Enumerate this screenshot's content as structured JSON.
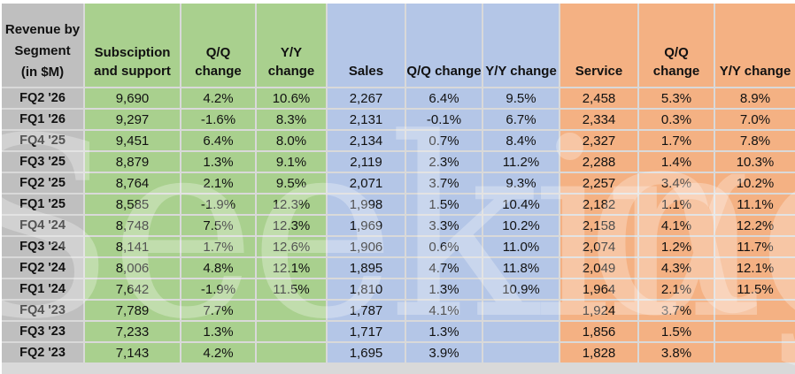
{
  "colors": {
    "green": "#A9D08E",
    "blue": "#B4C6E7",
    "orange": "#F4B183",
    "header_gray": "#BFBFBF",
    "gridline": "#D9D9D9"
  },
  "watermark": {
    "text": "SeekingAlpha",
    "alpha_glyph": "α"
  },
  "chart_data": {
    "type": "table",
    "title": "Revenue by Segment (in $M)",
    "row_header_title_lines": [
      "Revenue by",
      "Segment",
      "(in $M)"
    ],
    "headers": [
      "Subsciption and support",
      "Q/Q change",
      "Y/Y change",
      "Sales",
      "Q/Q change",
      "Y/Y change",
      "Service",
      "Q/Q change",
      "Y/Y change"
    ],
    "sections": [
      "green",
      "green",
      "green",
      "blue",
      "blue",
      "blue",
      "orange",
      "orange",
      "orange"
    ],
    "rows": [
      {
        "period": "FQ2 '26",
        "values": [
          "9,690",
          "4.2%",
          "10.6%",
          "2,267",
          "6.4%",
          "9.5%",
          "2,458",
          "5.3%",
          "8.9%"
        ]
      },
      {
        "period": "FQ1 '26",
        "values": [
          "9,297",
          "-1.6%",
          "8.3%",
          "2,131",
          "-0.1%",
          "6.7%",
          "2,334",
          "0.3%",
          "7.0%"
        ]
      },
      {
        "period": "FQ4 '25",
        "values": [
          "9,451",
          "6.4%",
          "8.0%",
          "2,134",
          "0.7%",
          "8.4%",
          "2,327",
          "1.7%",
          "7.8%"
        ]
      },
      {
        "period": "FQ3 '25",
        "values": [
          "8,879",
          "1.3%",
          "9.1%",
          "2,119",
          "2.3%",
          "11.2%",
          "2,288",
          "1.4%",
          "10.3%"
        ]
      },
      {
        "period": "FQ2 '25",
        "values": [
          "8,764",
          "2.1%",
          "9.5%",
          "2,071",
          "3.7%",
          "9.3%",
          "2,257",
          "3.4%",
          "10.2%"
        ]
      },
      {
        "period": "FQ1 '25",
        "values": [
          "8,585",
          "-1.9%",
          "12.3%",
          "1,998",
          "1.5%",
          "10.4%",
          "2,182",
          "1.1%",
          "11.1%"
        ]
      },
      {
        "period": "FQ4 '24",
        "values": [
          "8,748",
          "7.5%",
          "12.3%",
          "1,969",
          "3.3%",
          "10.2%",
          "2,158",
          "4.1%",
          "12.2%"
        ]
      },
      {
        "period": "FQ3 '24",
        "values": [
          "8,141",
          "1.7%",
          "12.6%",
          "1,906",
          "0.6%",
          "11.0%",
          "2,074",
          "1.2%",
          "11.7%"
        ]
      },
      {
        "period": "FQ2 '24",
        "values": [
          "8,006",
          "4.8%",
          "12.1%",
          "1,895",
          "4.7%",
          "11.8%",
          "2,049",
          "4.3%",
          "12.1%"
        ]
      },
      {
        "period": "FQ1 '24",
        "values": [
          "7,642",
          "-1.9%",
          "11.5%",
          "1,810",
          "1.3%",
          "10.9%",
          "1,964",
          "2.1%",
          "11.5%"
        ]
      },
      {
        "period": "FQ4 '23",
        "values": [
          "7,789",
          "7.7%",
          "",
          "1,787",
          "4.1%",
          "",
          "1,924",
          "3.7%",
          ""
        ]
      },
      {
        "period": "FQ3 '23",
        "values": [
          "7,233",
          "1.3%",
          "",
          "1,717",
          "1.3%",
          "",
          "1,856",
          "1.5%",
          ""
        ]
      },
      {
        "period": "FQ2 '23",
        "values": [
          "7,143",
          "4.2%",
          "",
          "1,695",
          "3.9%",
          "",
          "1,828",
          "3.8%",
          ""
        ]
      }
    ]
  }
}
